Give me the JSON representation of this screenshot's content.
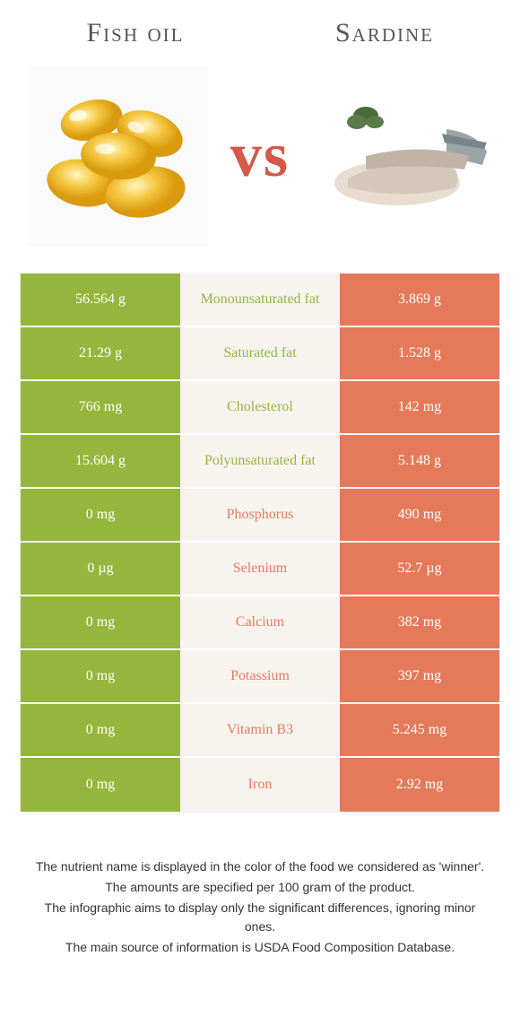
{
  "header": {
    "left_title": "Fish oil",
    "right_title": "Sardine",
    "vs": "vs"
  },
  "colors": {
    "green": "#95b63c",
    "orange": "#e57a5a",
    "mid_bg": "#f7f4f0",
    "vs_color": "#d35949"
  },
  "rows": [
    {
      "left": "56.564 g",
      "mid": "Monounsaturated fat",
      "right": "3.869 g",
      "winner": "left"
    },
    {
      "left": "21.29 g",
      "mid": "Saturated fat",
      "right": "1.528 g",
      "winner": "left"
    },
    {
      "left": "766 mg",
      "mid": "Cholesterol",
      "right": "142 mg",
      "winner": "left"
    },
    {
      "left": "15.604 g",
      "mid": "Polyunsaturated fat",
      "right": "5.148 g",
      "winner": "left"
    },
    {
      "left": "0 mg",
      "mid": "Phosphorus",
      "right": "490 mg",
      "winner": "right"
    },
    {
      "left": "0 µg",
      "mid": "Selenium",
      "right": "52.7 µg",
      "winner": "right"
    },
    {
      "left": "0 mg",
      "mid": "Calcium",
      "right": "382 mg",
      "winner": "right"
    },
    {
      "left": "0 mg",
      "mid": "Potassium",
      "right": "397 mg",
      "winner": "right"
    },
    {
      "left": "0 mg",
      "mid": "Vitamin B3",
      "right": "5.245 mg",
      "winner": "right"
    },
    {
      "left": "0 mg",
      "mid": "Iron",
      "right": "2.92 mg",
      "winner": "right"
    }
  ],
  "footer": {
    "line1": "The nutrient name is displayed in the color of the food we considered as 'winner'.",
    "line2": "The amounts are specified per 100 gram of the product.",
    "line3": "The infographic aims to display only the significant differences, ignoring minor ones.",
    "line4": "The main source of information is USDA Food Composition Database."
  }
}
